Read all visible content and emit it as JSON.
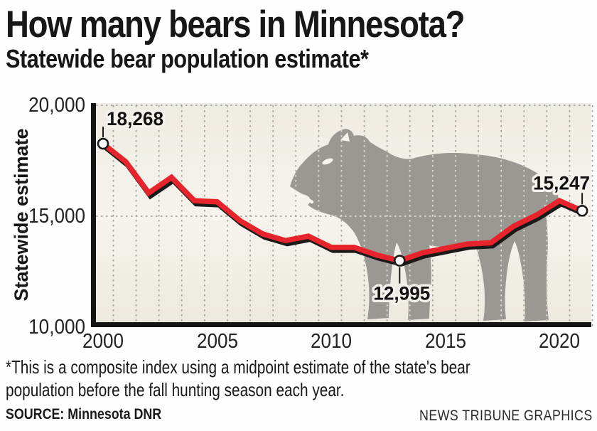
{
  "header": {
    "title": "How many bears in Minnesota?",
    "subtitle": "Statewide bear population estimate*"
  },
  "chart_data": {
    "type": "line",
    "title": "Statewide bear population estimate*",
    "ylabel": "Statewide estimate",
    "xlabel": "",
    "ylim": [
      10000,
      20000
    ],
    "grid": true,
    "legend": false,
    "background_art": "gray walking bear silhouette watermark",
    "yticks": [
      {
        "value": 20000,
        "label": "20,000"
      },
      {
        "value": 15000,
        "label": "15,000"
      },
      {
        "value": 10000,
        "label": "10,000"
      }
    ],
    "xticks": [
      {
        "value": 2000,
        "label": "2000"
      },
      {
        "value": 2005,
        "label": "2005"
      },
      {
        "value": 2010,
        "label": "2010"
      },
      {
        "value": 2015,
        "label": "2015"
      },
      {
        "value": 2020,
        "label": "2020"
      }
    ],
    "x": [
      2000,
      2001,
      2002,
      2003,
      2004,
      2005,
      2006,
      2007,
      2008,
      2009,
      2010,
      2011,
      2012,
      2013,
      2014,
      2015,
      2016,
      2017,
      2018,
      2019,
      2020,
      2021
    ],
    "series": [
      {
        "name": "Statewide bear population estimate",
        "values": [
          18268,
          17450,
          16050,
          16750,
          15700,
          15650,
          14800,
          14200,
          13900,
          14100,
          13600,
          13600,
          13250,
          12995,
          13350,
          13550,
          13750,
          13800,
          14550,
          15050,
          15700,
          15247
        ]
      }
    ],
    "annotations": [
      {
        "year": 2000,
        "value": 18268,
        "label": "18,268",
        "position": "above"
      },
      {
        "year": 2013,
        "value": 12995,
        "label": "12,995",
        "position": "below"
      },
      {
        "year": 2021,
        "value": 15247,
        "label": "15,247",
        "position": "above-end"
      }
    ]
  },
  "footnote": {
    "line1": "*This is a composite index using a midpoint estimate of the state's bear",
    "line2": "population before the fall hunting season each year."
  },
  "footer": {
    "source": "SOURCE: Minnesota DNR",
    "credit": "NEWS TRIBUNE GRAPHICS"
  },
  "colors": {
    "line": "#e7242b",
    "line_shadow": "#1a1a1a",
    "marker_fill": "#ffffff",
    "marker_stroke": "#1a1a1a",
    "grid": "#a5a29a",
    "grid_on_art": "#f1eee6",
    "bear": "#9a9892",
    "axis": "#141414",
    "plot_bg_top": "#eeebe2",
    "plot_bg_mid": "#f5f3ec",
    "plot_bg_bottom": "#ece9de"
  }
}
